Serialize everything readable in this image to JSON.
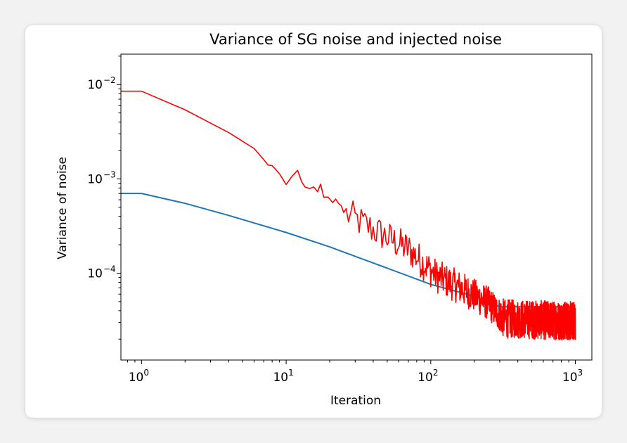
{
  "chart_data": {
    "type": "line",
    "title": "Variance of SG noise and injected noise",
    "xlabel": "Iteration",
    "ylabel": "Variance of noise",
    "xscale": "log",
    "yscale": "log",
    "xlim": [
      0.72,
      1300
    ],
    "ylim": [
      1.2e-05,
      0.021
    ],
    "grid": false,
    "legend": "none",
    "x_ticks": [
      {
        "value": 1,
        "base": "10",
        "exp": "0"
      },
      {
        "value": 10,
        "base": "10",
        "exp": "1"
      },
      {
        "value": 100,
        "base": "10",
        "exp": "2"
      },
      {
        "value": 1000,
        "base": "10",
        "exp": "3"
      }
    ],
    "y_ticks": [
      {
        "value": 0.01,
        "base": "10",
        "exp": "−2"
      },
      {
        "value": 0.001,
        "base": "10",
        "exp": "−3"
      },
      {
        "value": 0.0001,
        "base": "10",
        "exp": "−4"
      }
    ],
    "series": [
      {
        "color": "#1f77b4",
        "points": [
          [
            0.72,
            0.0007
          ],
          [
            1,
            0.0007
          ],
          [
            2,
            0.00055
          ],
          [
            4,
            0.00041
          ],
          [
            10,
            0.00027
          ],
          [
            20,
            0.00019
          ],
          [
            50,
            0.000113
          ],
          [
            100,
            7.6e-05
          ],
          [
            200,
            5.7e-05
          ],
          [
            300,
            4.4e-05
          ],
          [
            1000,
            4.4e-05
          ]
        ]
      },
      {
        "color": "#ff0000",
        "points": [
          [
            0.72,
            0.0085
          ],
          [
            1,
            0.0085
          ],
          [
            2,
            0.0054
          ],
          [
            3,
            0.0039
          ],
          [
            4,
            0.0031
          ],
          [
            5,
            0.0025
          ],
          [
            6,
            0.0021
          ],
          [
            7,
            0.0016
          ],
          [
            7.5,
            0.0014
          ],
          [
            8,
            0.00138
          ],
          [
            8.5,
            0.00125
          ],
          [
            9,
            0.00113
          ],
          [
            10,
            0.00087
          ],
          [
            11,
            0.00107
          ],
          [
            12,
            0.00123
          ],
          [
            12.8,
            0.00093
          ],
          [
            13.5,
            0.00082
          ],
          [
            14.5,
            0.00079
          ],
          [
            15.5,
            0.00082
          ],
          [
            16.5,
            0.00073
          ],
          [
            17.3,
            0.00088
          ],
          [
            18.2,
            0.00064
          ],
          [
            19.5,
            0.00064
          ],
          [
            21,
            0.00056
          ],
          [
            22,
            0.00061
          ],
          [
            23,
            0.00055
          ],
          [
            24,
            0.00052
          ],
          [
            25,
            0.00044
          ]
        ],
        "noise_from": 25,
        "noise_to": 1000,
        "noise_trend": [
          [
            25,
            0.00044
          ],
          [
            40,
            0.00029
          ],
          [
            70,
            0.00018
          ],
          [
            110,
            9.3e-05
          ],
          [
            160,
            7e-05
          ],
          [
            250,
            4.8e-05
          ],
          [
            320,
            3.3e-05
          ],
          [
            1000,
            3.1e-05
          ]
        ],
        "noise_amplitude": 0.18
      }
    ]
  }
}
